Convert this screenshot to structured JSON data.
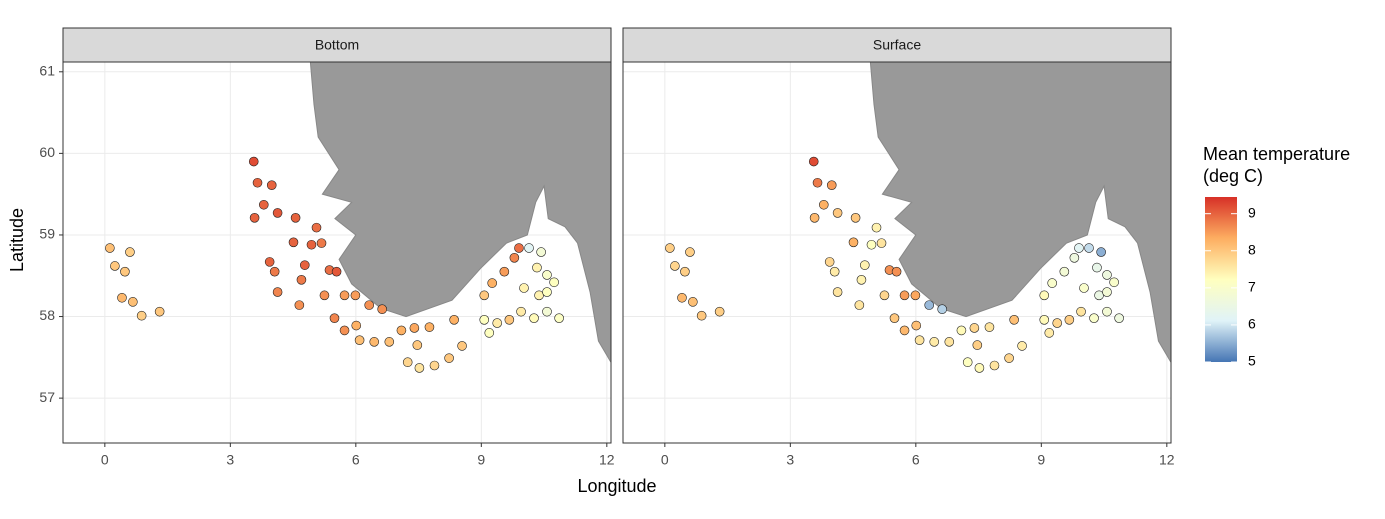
{
  "chart_data": {
    "type": "scatter",
    "x_label": "Longitude",
    "y_label": "Latitude",
    "xlim": [
      -1,
      12.1
    ],
    "ylim": [
      56.45,
      61.12
    ],
    "xticks": [
      0,
      3,
      6,
      9,
      12
    ],
    "yticks": [
      57,
      58,
      59,
      60,
      61
    ],
    "grid": true,
    "colorbar": {
      "title": [
        "Mean temperature",
        "(deg C)"
      ],
      "lim": [
        5,
        9.45
      ],
      "ticks": [
        5,
        6,
        7,
        8,
        9
      ],
      "colors": [
        "#4575b4",
        "#e0f3f8",
        "#ffffbf",
        "#fdae61",
        "#d73027"
      ]
    },
    "panels": [
      {
        "title": "Bottom",
        "x": [
          3.56,
          3.65,
          3.99,
          3.8,
          3.58,
          4.13,
          4.56,
          5.06,
          4.94,
          5.18,
          4.51,
          3.94,
          4.06,
          4.78,
          5.37,
          5.54,
          4.13,
          4.7,
          4.65,
          5.25,
          5.73,
          5.99,
          6.32,
          6.63,
          5.49,
          5.73,
          6.01,
          6.09,
          6.44,
          6.8,
          7.09,
          7.4,
          7.76,
          7.47,
          7.24,
          7.52,
          7.88,
          8.23,
          8.54,
          8.35,
          9.07,
          9.19,
          9.38,
          9.67,
          9.95,
          10.26,
          10.57,
          10.86,
          10.38,
          10.57,
          10.74,
          10.02,
          9.07,
          9.26,
          9.55,
          9.79,
          9.9,
          10.14,
          10.43,
          10.33,
          10.57,
          0.12,
          0.6,
          0.24,
          0.48,
          0.41,
          0.67,
          0.88,
          1.31
        ],
        "y": [
          59.9,
          59.64,
          59.61,
          59.37,
          59.21,
          59.27,
          59.21,
          59.09,
          58.88,
          58.9,
          58.91,
          58.67,
          58.55,
          58.63,
          58.57,
          58.55,
          58.3,
          58.45,
          58.14,
          58.26,
          58.26,
          58.26,
          58.14,
          58.09,
          57.98,
          57.83,
          57.89,
          57.71,
          57.69,
          57.69,
          57.83,
          57.86,
          57.87,
          57.65,
          57.44,
          57.37,
          57.4,
          57.49,
          57.64,
          57.96,
          57.96,
          57.8,
          57.92,
          57.96,
          58.06,
          57.98,
          58.06,
          57.98,
          58.26,
          58.3,
          58.42,
          58.35,
          58.26,
          58.41,
          58.55,
          58.72,
          58.84,
          58.84,
          58.79,
          58.6,
          58.51,
          58.84,
          58.79,
          58.62,
          58.55,
          58.23,
          58.18,
          58.01,
          58.06
        ],
        "values": [
          9.2,
          9.0,
          9.0,
          9.0,
          9.0,
          9.1,
          9.0,
          8.9,
          9.0,
          8.8,
          9.0,
          9.0,
          8.8,
          9.0,
          8.9,
          9.1,
          8.7,
          8.8,
          8.6,
          8.6,
          8.5,
          8.5,
          8.6,
          8.6,
          8.7,
          8.6,
          8.3,
          8.1,
          8.2,
          8.1,
          8.3,
          8.4,
          8.3,
          8.0,
          7.8,
          7.6,
          7.8,
          8.0,
          8.0,
          8.3,
          7.2,
          7.2,
          7.5,
          8.0,
          7.5,
          7.3,
          6.8,
          7.1,
          7.4,
          7.2,
          7.2,
          7.4,
          8.0,
          8.3,
          8.5,
          8.7,
          8.9,
          6.2,
          6.8,
          7.4,
          7.0,
          8.1,
          7.9,
          8.0,
          8.0,
          8.2,
          8.1,
          7.9,
          8.0
        ]
      },
      {
        "title": "Surface",
        "x": [
          3.56,
          3.65,
          3.99,
          3.8,
          3.58,
          4.13,
          4.56,
          5.06,
          4.94,
          5.18,
          4.51,
          3.94,
          4.06,
          4.78,
          5.37,
          5.54,
          4.13,
          4.7,
          4.65,
          5.25,
          5.73,
          5.99,
          6.32,
          6.63,
          5.49,
          5.73,
          6.01,
          6.09,
          6.44,
          6.8,
          7.09,
          7.4,
          7.76,
          7.47,
          7.24,
          7.52,
          7.88,
          8.23,
          8.54,
          8.35,
          9.07,
          9.19,
          9.38,
          9.67,
          9.95,
          10.26,
          10.57,
          10.86,
          10.38,
          10.57,
          10.74,
          10.02,
          9.07,
          9.26,
          9.55,
          9.79,
          9.9,
          10.14,
          10.43,
          10.33,
          10.57,
          0.12,
          0.6,
          0.24,
          0.48,
          0.41,
          0.67,
          0.88,
          1.31
        ],
        "y": [
          59.9,
          59.64,
          59.61,
          59.37,
          59.21,
          59.27,
          59.21,
          59.09,
          58.88,
          58.9,
          58.91,
          58.67,
          58.55,
          58.63,
          58.57,
          58.55,
          58.3,
          58.45,
          58.14,
          58.26,
          58.26,
          58.26,
          58.14,
          58.09,
          57.98,
          57.83,
          57.89,
          57.71,
          57.69,
          57.69,
          57.83,
          57.86,
          57.87,
          57.65,
          57.44,
          57.37,
          57.4,
          57.49,
          57.64,
          57.96,
          57.96,
          57.8,
          57.92,
          57.96,
          58.06,
          57.98,
          58.06,
          57.98,
          58.26,
          58.3,
          58.42,
          58.35,
          58.26,
          58.41,
          58.55,
          58.72,
          58.84,
          58.84,
          58.79,
          58.6,
          58.51,
          58.84,
          58.79,
          58.62,
          58.55,
          58.23,
          58.18,
          58.01,
          58.06
        ],
        "values": [
          9.2,
          8.8,
          8.5,
          8.3,
          8.2,
          8.0,
          8.0,
          7.4,
          7.2,
          7.6,
          8.3,
          7.8,
          7.5,
          7.4,
          8.6,
          8.6,
          7.6,
          7.4,
          7.6,
          7.8,
          8.5,
          8.4,
          5.6,
          5.8,
          8.0,
          8.2,
          8.1,
          7.6,
          7.5,
          7.6,
          7.3,
          7.8,
          7.6,
          7.9,
          7.2,
          7.3,
          7.6,
          7.8,
          7.5,
          8.1,
          7.3,
          7.5,
          7.8,
          7.9,
          7.6,
          7.0,
          6.8,
          6.6,
          6.5,
          6.8,
          7.0,
          7.0,
          7.3,
          7.0,
          6.8,
          6.6,
          6.2,
          5.9,
          5.5,
          6.4,
          6.6,
          7.9,
          7.9,
          7.8,
          7.9,
          8.2,
          8.1,
          8.0,
          7.9
        ]
      }
    ]
  }
}
